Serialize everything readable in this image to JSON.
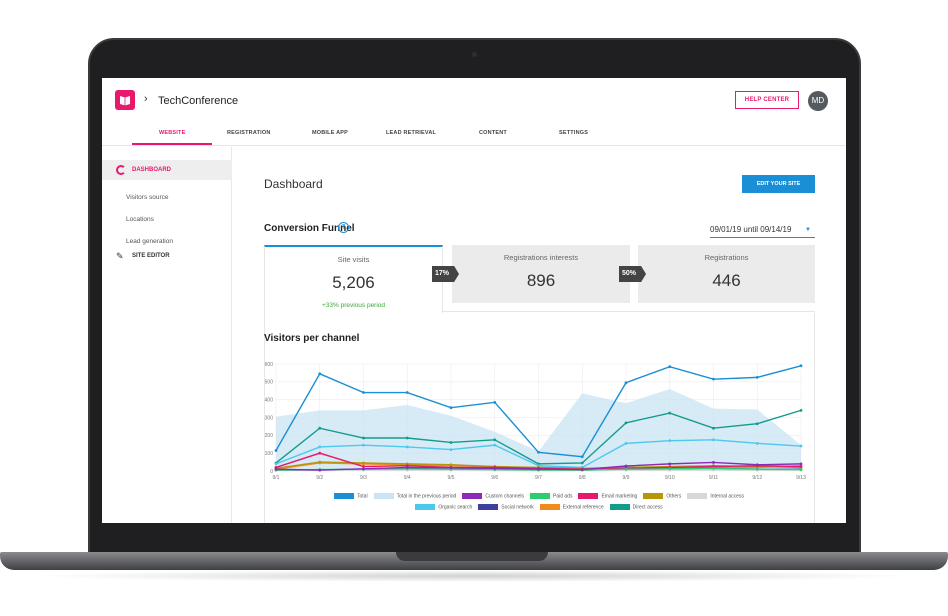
{
  "app": {
    "title": "TechConference",
    "help_label": "HELP CENTER",
    "avatar_initials": "MD",
    "brand_color": "#e8186d"
  },
  "nav_tabs": [
    {
      "label": "WEBSITE",
      "active": true
    },
    {
      "label": "REGISTRATION"
    },
    {
      "label": "MOBILE APP"
    },
    {
      "label": "LEAD RETRIEVAL"
    },
    {
      "label": "CONTENT"
    },
    {
      "label": "SETTINGS"
    }
  ],
  "sidebar": {
    "dashboard": "DASHBOARD",
    "items": [
      {
        "label": "Visitors source"
      },
      {
        "label": "Locations"
      },
      {
        "label": "Lead generation"
      }
    ],
    "site_editor": "SITE EDITOR"
  },
  "main": {
    "title": "Dashboard",
    "edit_label": "EDIT YOUR SITE",
    "funnel_title": "Conversion Funnel",
    "date_range": "09/01/19 until 09/14/19",
    "cards": [
      {
        "label": "Site visits",
        "value": "5,206",
        "change": "+33% previous period"
      },
      {
        "label": "Registrations interests",
        "value": "896"
      },
      {
        "label": "Registrations",
        "value": "446"
      }
    ],
    "conversions": [
      "17%",
      "50%"
    ],
    "chart_title": "Visitors per channel"
  },
  "chart_data": {
    "type": "line",
    "title": "Visitors per channel",
    "categories": [
      "9/1",
      "9/2",
      "9/3",
      "9/4",
      "9/5",
      "9/6",
      "9/7",
      "9/8",
      "9/9",
      "9/10",
      "9/11",
      "9/12",
      "9/13"
    ],
    "yticks": [
      0,
      100,
      200,
      300,
      400,
      500,
      600
    ],
    "ylim": [
      0,
      600
    ],
    "grid": true,
    "legend_position": "bottom",
    "series": [
      {
        "name": "Total",
        "color": "#1a8fd6",
        "values": [
          115,
          545,
          440,
          440,
          355,
          385,
          105,
          80,
          495,
          585,
          515,
          525,
          590
        ]
      },
      {
        "name": "Total in the previous period",
        "color": "#c9e4f4",
        "area": true,
        "values": [
          305,
          340,
          340,
          370,
          310,
          220,
          110,
          435,
          380,
          460,
          350,
          345,
          145
        ]
      },
      {
        "name": "Custom channels",
        "color": "#8e2ab5",
        "values": [
          10,
          5,
          12,
          20,
          18,
          15,
          10,
          8,
          28,
          40,
          48,
          35,
          40
        ]
      },
      {
        "name": "Paid ads",
        "color": "#2ecc71",
        "values": [
          5,
          8,
          10,
          12,
          10,
          8,
          5,
          5,
          10,
          12,
          15,
          10,
          8
        ]
      },
      {
        "name": "Email marketing",
        "color": "#e8186d",
        "values": [
          20,
          100,
          25,
          30,
          20,
          20,
          15,
          10,
          15,
          20,
          25,
          30,
          25
        ]
      },
      {
        "name": "Others",
        "color": "#b8950a",
        "values": [
          15,
          50,
          45,
          40,
          35,
          25,
          20,
          15,
          20,
          25,
          30,
          25,
          20
        ]
      },
      {
        "name": "Internal access",
        "color": "#d7d7d7",
        "values": [
          5,
          5,
          5,
          5,
          5,
          5,
          5,
          5,
          5,
          5,
          5,
          5,
          5
        ]
      },
      {
        "name": "Organic search",
        "color": "#4cc8ee",
        "values": [
          40,
          135,
          145,
          135,
          120,
          145,
          30,
          20,
          155,
          170,
          175,
          155,
          140
        ]
      },
      {
        "name": "Social network",
        "color": "#3f3fa0",
        "values": [
          5,
          5,
          10,
          15,
          10,
          10,
          8,
          5,
          10,
          12,
          15,
          10,
          10
        ]
      },
      {
        "name": "External reference",
        "color": "#f08a1c",
        "values": [
          10,
          45,
          40,
          35,
          30,
          25,
          15,
          10,
          15,
          20,
          20,
          20,
          30
        ]
      },
      {
        "name": "Direct access",
        "color": "#129c8c",
        "values": [
          45,
          240,
          185,
          185,
          160,
          175,
          40,
          45,
          270,
          325,
          240,
          265,
          340
        ]
      }
    ]
  },
  "legend_rows": [
    [
      "Total",
      "Total in the previous period",
      "Custom channels",
      "Paid ads",
      "Email marketing",
      "Others",
      "Internal access"
    ],
    [
      "Organic search",
      "Social network",
      "External reference",
      "Direct access"
    ]
  ]
}
